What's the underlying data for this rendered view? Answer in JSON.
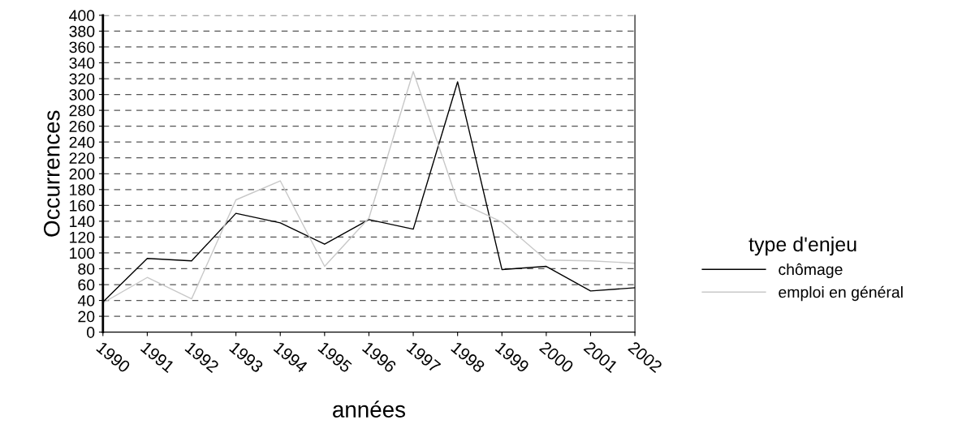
{
  "chart_data": {
    "type": "line",
    "categories": [
      "1990",
      "1991",
      "1992",
      "1993",
      "1994",
      "1995",
      "1996",
      "1997",
      "1998",
      "1999",
      "2000",
      "2001",
      "2002"
    ],
    "series": [
      {
        "name": "chômage",
        "color": "#000000",
        "values": [
          38,
          93,
          90,
          150,
          138,
          111,
          142,
          130,
          316,
          79,
          83,
          52,
          56
        ]
      },
      {
        "name": "emploi en général",
        "color": "#c8c8c8",
        "values": [
          37,
          69,
          42,
          167,
          191,
          83,
          144,
          329,
          165,
          139,
          91,
          90,
          87
        ]
      }
    ],
    "xlabel": "années",
    "ylabel": "Occurrences",
    "legend_title": "type d'enjeu",
    "ylim": [
      0,
      400
    ],
    "yticks": [
      0,
      20,
      40,
      60,
      80,
      100,
      120,
      140,
      160,
      180,
      200,
      220,
      240,
      260,
      280,
      300,
      320,
      340,
      360,
      380,
      400
    ],
    "grid": "y",
    "legend": "right",
    "marker": "none",
    "line_style": "solid"
  }
}
